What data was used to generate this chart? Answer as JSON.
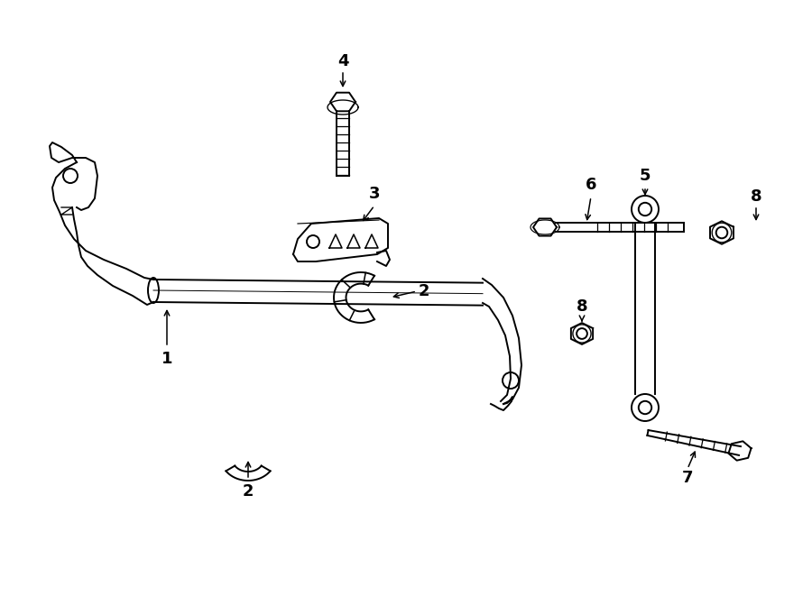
{
  "bg_color": "#ffffff",
  "line_color": "#000000",
  "figsize": [
    9.0,
    6.61
  ],
  "dpi": 100,
  "xlim": [
    0,
    900
  ],
  "ylim": [
    0,
    661
  ]
}
